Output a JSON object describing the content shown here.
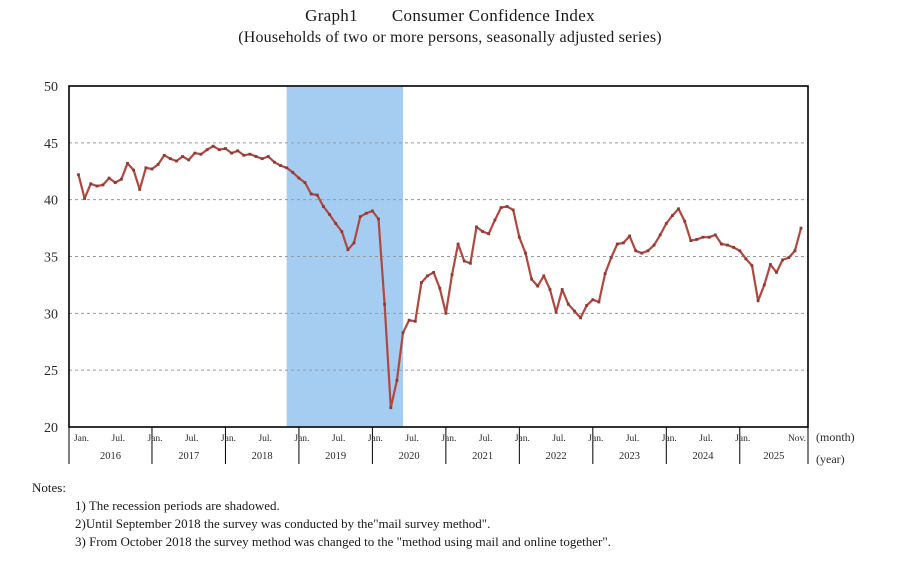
{
  "header": {
    "graph_label": "Graph1",
    "title": "Consumer Confidence Index",
    "subtitle": "(Households of two or more persons, seasonally adjusted series)"
  },
  "x_axis": {
    "unit_month": "(month)",
    "unit_year": "(year)",
    "month_tick_label_jan": "Jan.",
    "month_tick_label_jul": "Jul.",
    "final_month_tick_label": "Nov.",
    "years": [
      "2016",
      "2017",
      "2018",
      "2019",
      "2020",
      "2021",
      "2022",
      "2023",
      "2024",
      "2025"
    ]
  },
  "y_axis": {
    "ticks": [
      50,
      45,
      40,
      35,
      30,
      25,
      20
    ]
  },
  "notes": {
    "title": "Notes:",
    "items": [
      "1) The recession periods are shadowed.",
      "2)Until September 2018 the survey was conducted by the\"mail survey method\".",
      "3) From October 2018 the survey method was changed to the \"method using mail and online together\"."
    ]
  },
  "colors": {
    "line": "#b2473e",
    "marker": "#8d3a34",
    "recession_band": "#a5cdf2",
    "grid": "#9a9a9a",
    "axis": "#000000"
  },
  "chart_data": {
    "type": "line",
    "title": "Graph1 Consumer Confidence Index",
    "subtitle": "(Households of two or more persons, seasonally adjusted series)",
    "xlabel": "(month) (year)",
    "ylabel": "",
    "ylim": [
      20,
      50
    ],
    "yticks": [
      20,
      25,
      30,
      35,
      40,
      45,
      50
    ],
    "x_start": "2016-01",
    "x_end": "2025-11",
    "x_frequency": "monthly",
    "grid": "horizontal-dashed",
    "legend": "none",
    "recession_band": {
      "start": "2018-11",
      "end": "2020-05",
      "note": "recession period shadowed"
    },
    "series": [
      {
        "name": "Consumer Confidence Index (seasonally adjusted)",
        "color": "#b2473e",
        "values": [
          42.2,
          40.1,
          41.4,
          41.2,
          41.3,
          41.9,
          41.5,
          41.8,
          43.2,
          42.6,
          40.9,
          42.8,
          42.7,
          43.1,
          43.9,
          43.6,
          43.4,
          43.8,
          43.5,
          44.1,
          44.0,
          44.4,
          44.7,
          44.4,
          44.5,
          44.1,
          44.3,
          43.9,
          44.0,
          43.8,
          43.6,
          43.8,
          43.3,
          43.0,
          42.8,
          42.4,
          41.9,
          41.5,
          40.5,
          40.4,
          39.4,
          38.7,
          37.9,
          37.2,
          35.6,
          36.2,
          38.5,
          38.8,
          39.0,
          38.3,
          30.8,
          21.7,
          24.1,
          28.3,
          29.4,
          29.3,
          32.7,
          33.3,
          33.6,
          32.2,
          30.0,
          33.4,
          36.1,
          34.6,
          34.4,
          37.6,
          37.2,
          37.0,
          38.2,
          39.3,
          39.4,
          39.1,
          36.7,
          35.3,
          33.0,
          32.4,
          33.3,
          32.1,
          30.1,
          32.1,
          30.8,
          30.2,
          29.6,
          30.7,
          31.2,
          31.0,
          33.5,
          34.9,
          36.1,
          36.2,
          36.8,
          35.5,
          35.3,
          35.5,
          36.0,
          36.9,
          37.9,
          38.6,
          39.2,
          38.1,
          36.4,
          36.5,
          36.7,
          36.7,
          36.9,
          36.1,
          36.0,
          35.8,
          35.5,
          34.8,
          34.2,
          31.1,
          32.5,
          34.3,
          33.6,
          34.7,
          34.9,
          35.5,
          37.5
        ]
      }
    ]
  }
}
